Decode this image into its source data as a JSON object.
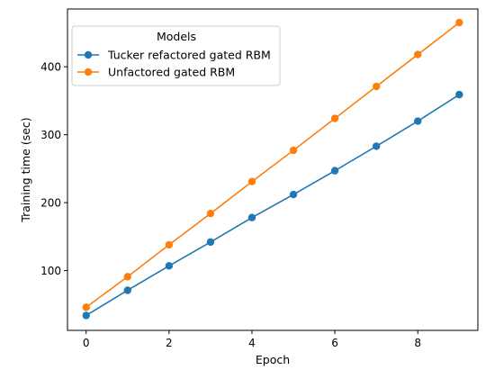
{
  "chart_data": {
    "type": "line",
    "title": "",
    "xlabel": "Epoch",
    "ylabel": "Training time (sec)",
    "xlim": [
      -0.45,
      9.45
    ],
    "ylim": [
      12,
      485
    ],
    "xticks": [
      0,
      2,
      4,
      6,
      8
    ],
    "yticks": [
      100,
      200,
      300,
      400
    ],
    "x": [
      0,
      1,
      2,
      3,
      4,
      5,
      6,
      7,
      8,
      9
    ],
    "series": [
      {
        "name": "Tucker refactored gated RBM",
        "color": "#1f77b4",
        "values": [
          34,
          71,
          107,
          142,
          178,
          212,
          247,
          283,
          320,
          359
        ]
      },
      {
        "name": "Unfactored gated RBM",
        "color": "#ff7f0e",
        "values": [
          46,
          91,
          138,
          184,
          231,
          277,
          324,
          371,
          418,
          465
        ]
      }
    ],
    "legend": {
      "title": "Models",
      "position": "top-left"
    },
    "grid": false
  }
}
